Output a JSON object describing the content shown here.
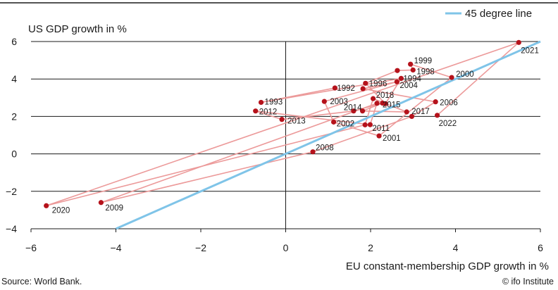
{
  "chart_data": {
    "type": "scatter",
    "title": "",
    "xlabel": "EU constant-membership GDP growth in %",
    "ylabel": "US GDP growth in %",
    "xlim": [
      -6,
      6
    ],
    "ylim": [
      -4,
      6
    ],
    "x_ticks": [
      "−6",
      "−4",
      "−2",
      "0",
      "2",
      "4",
      "6"
    ],
    "y_ticks": [
      "−4",
      "−2",
      "0",
      "2",
      "4",
      "6"
    ],
    "grid": "horizontal",
    "legend": {
      "label": "45 degree line",
      "position": "top-right"
    },
    "reference_line": {
      "name": "45 degree line",
      "from": [
        -4,
        -4
      ],
      "to": [
        6,
        6
      ]
    },
    "connect_points_in_year_order": true,
    "points": [
      {
        "year": "1992",
        "x": 1.16,
        "y": 3.52
      },
      {
        "year": "1993",
        "x": -0.58,
        "y": 2.75
      },
      {
        "year": "1994",
        "x": 2.72,
        "y": 4.03
      },
      {
        "year": "1995",
        "x": 2.35,
        "y": 2.68
      },
      {
        "year": "1996",
        "x": 1.88,
        "y": 3.77
      },
      {
        "year": "1997",
        "x": 2.63,
        "y": 4.45
      },
      {
        "year": "1998",
        "x": 3.0,
        "y": 4.48
      },
      {
        "year": "1999",
        "x": 2.94,
        "y": 4.79
      },
      {
        "year": "2000",
        "x": 3.91,
        "y": 4.08
      },
      {
        "year": "2001",
        "x": 2.2,
        "y": 0.96
      },
      {
        "year": "2002",
        "x": 1.13,
        "y": 1.7
      },
      {
        "year": "2003",
        "x": 0.91,
        "y": 2.8
      },
      {
        "year": "2004",
        "x": 2.62,
        "y": 3.85
      },
      {
        "year": "2005",
        "x": 1.82,
        "y": 3.48
      },
      {
        "year": "2006",
        "x": 3.53,
        "y": 2.78
      },
      {
        "year": "2007",
        "x": 2.97,
        "y": 2.0
      },
      {
        "year": "2008",
        "x": 0.64,
        "y": 0.11
      },
      {
        "year": "2009",
        "x": -4.35,
        "y": -2.6
      },
      {
        "year": "2010",
        "x": 2.15,
        "y": 2.7
      },
      {
        "year": "2011",
        "x": 1.99,
        "y": 1.56
      },
      {
        "year": "2012",
        "x": -0.71,
        "y": 2.29
      },
      {
        "year": "2013",
        "x": -0.09,
        "y": 1.84
      },
      {
        "year": "2014",
        "x": 1.6,
        "y": 2.29
      },
      {
        "year": "2015",
        "x": 2.28,
        "y": 2.71
      },
      {
        "year": "2016",
        "x": 1.81,
        "y": 2.29
      },
      {
        "year": "2017",
        "x": 2.85,
        "y": 2.24
      },
      {
        "year": "2018",
        "x": 2.06,
        "y": 2.95
      },
      {
        "year": "2019",
        "x": 1.87,
        "y": 1.55
      },
      {
        "year": "2020",
        "x": -5.64,
        "y": -2.77
      },
      {
        "year": "2021",
        "x": 5.49,
        "y": 5.95
      },
      {
        "year": "2022",
        "x": 3.57,
        "y": 2.06
      }
    ],
    "labeled_years": [
      "1992",
      "1993",
      "1994",
      "1996",
      "1998",
      "1999",
      "2000",
      "2001",
      "2002",
      "2003",
      "2004",
      "2006",
      "2008",
      "2009",
      "2011",
      "2012",
      "2013",
      "2014",
      "2015",
      "2017",
      "2018",
      "2020",
      "2021",
      "2022"
    ],
    "colors": {
      "points": "#b5121b",
      "connector": "#ec9a9a",
      "reference_line": "#7fc4e8",
      "grid": "#1a1a1a"
    }
  },
  "footer": {
    "source": "Source: World Bank.",
    "credit": "© ifo Institute"
  }
}
